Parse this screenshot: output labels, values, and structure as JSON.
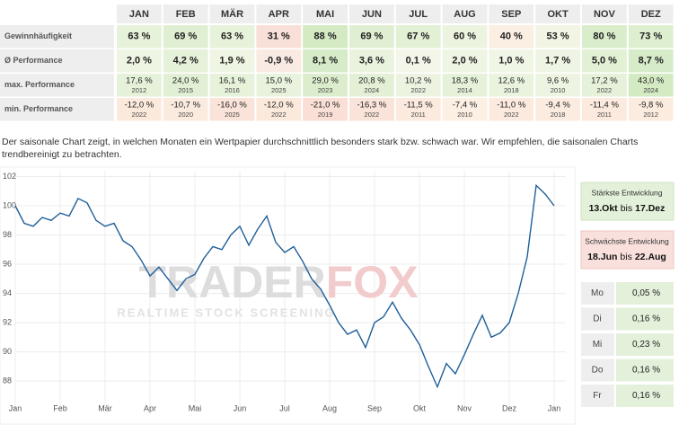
{
  "table": {
    "header": [
      "JAN",
      "FEB",
      "MÄR",
      "APR",
      "MAI",
      "JUN",
      "JUL",
      "AUG",
      "SEP",
      "OKT",
      "NOV",
      "DEZ"
    ],
    "rows": [
      {
        "label": "Gewinnhäufigkeit",
        "values": [
          "63 %",
          "69 %",
          "63 %",
          "31 %",
          "88 %",
          "69 %",
          "67 %",
          "60 %",
          "40 %",
          "53 %",
          "80 %",
          "73 %"
        ],
        "colors": [
          "#e6f2d9",
          "#e0efd2",
          "#e6f2d9",
          "#f8e0d8",
          "#d3eac3",
          "#e0efd2",
          "#e2f0d4",
          "#ecf4df",
          "#fbeee3",
          "#f3f5e4",
          "#d9edcb",
          "#deefd0"
        ]
      },
      {
        "label": "Ø Performance",
        "values": [
          "2,0 %",
          "4,2 %",
          "1,9 %",
          "-0,9 %",
          "8,1 %",
          "3,6 %",
          "0,1 %",
          "2,0 %",
          "1,0 %",
          "1,7 %",
          "5,0 %",
          "8,7 %"
        ],
        "colors": [
          "#eef5e3",
          "#e6f1da",
          "#eef5e3",
          "#f9ebe3",
          "#d6ebc7",
          "#e9f3dd",
          "#f3f6e8",
          "#eef5e3",
          "#f0f6e6",
          "#eff5e4",
          "#e2f0d4",
          "#d6ebc7"
        ]
      },
      {
        "label": "max. Performance",
        "values": [
          "17,6 %",
          "24,0 %",
          "16,1 %",
          "15,0 %",
          "29,0 %",
          "20,8 %",
          "10,2 %",
          "18,3 %",
          "12,6 %",
          "9,6 %",
          "17,2 %",
          "43,0 %"
        ],
        "years": [
          "2012",
          "2015",
          "2016",
          "2025",
          "2023",
          "2024",
          "2022",
          "2014",
          "2018",
          "2010",
          "2022",
          "2024"
        ],
        "colors": [
          "#e6f1da",
          "#e1efd4",
          "#e7f2db",
          "#e8f2dc",
          "#dcedcd",
          "#e3f0d6",
          "#ecf4e1",
          "#e5f1d9",
          "#e9f3de",
          "#edf5e2",
          "#e6f1da",
          "#d3eac3"
        ]
      },
      {
        "label": "min. Performance",
        "values": [
          "-12,0 %",
          "-10,7 %",
          "-16,0 %",
          "-12,0 %",
          "-21,0 %",
          "-16,3 %",
          "-11,5 %",
          "-7,4 %",
          "-11,0 %",
          "-9,4 %",
          "-11,4 %",
          "-9,8 %"
        ],
        "years": [
          "2022",
          "2020",
          "2025",
          "2022",
          "2019",
          "2022",
          "2011",
          "2010",
          "2022",
          "2018",
          "2011",
          "2012"
        ],
        "colors": [
          "#fbe9dc",
          "#fbebde",
          "#fae3d8",
          "#fbe9dc",
          "#f9dfd5",
          "#fae3d8",
          "#fbeadd",
          "#fcefe3",
          "#fbeadd",
          "#fcece0",
          "#fbeadd",
          "#fcece0"
        ]
      }
    ]
  },
  "description": [
    "Der saisonale Chart zeigt, in welchen Monaten ein Wertpapier durchschnittlich besonders stark bzw. schwach war. Wir empfehlen, die saisonalen Charts",
    "trendbereinigt zu betrachten."
  ],
  "chart_data": {
    "type": "line",
    "values": [
      100,
      98.8,
      98.6,
      99.2,
      99.0,
      99.5,
      99.3,
      100.5,
      100.2,
      99.0,
      98.6,
      98.8,
      97.6,
      97.2,
      96.3,
      95.2,
      95.8,
      95.0,
      94.2,
      95.0,
      95.3,
      96.4,
      97.2,
      97.0,
      98.0,
      98.6,
      97.3,
      98.4,
      99.3,
      97.5,
      96.8,
      97.2,
      96.2,
      95.0,
      94.3,
      93.2,
      92.0,
      91.2,
      91.5,
      90.3,
      92.0,
      92.4,
      93.4,
      92.3,
      91.5,
      90.5,
      89.0,
      87.6,
      89.2,
      88.5,
      89.8,
      91.2,
      92.5,
      91.0,
      91.3,
      92.0,
      94.0,
      96.5,
      101.4,
      100.8,
      100.0
    ],
    "xtick_labels": [
      "Jan",
      "Feb",
      "Mär",
      "Apr",
      "Mai",
      "Jun",
      "Jul",
      "Aug",
      "Sep",
      "Okt",
      "Nov",
      "Dez",
      "Jan"
    ],
    "ylim": [
      86.1,
      102.4
    ],
    "yticks": [
      88,
      90,
      92,
      94,
      96,
      98,
      100,
      102
    ],
    "color": "#1f5f99",
    "grid": true
  },
  "watermark": {
    "brand_left": "TRADER",
    "brand_right": "FOX",
    "tagline": "REALTIME STOCK SCREENING"
  },
  "strongest": {
    "title": "Stärkste Entwicklung",
    "from": "13.Okt",
    "connector": "bis",
    "to": "17.Dez"
  },
  "weakest": {
    "title": "Schwächste Entwicklung",
    "from": "18.Jun",
    "connector": "bis",
    "to": "22.Aug"
  },
  "weekdays": [
    {
      "day": "Mo",
      "value": "0,05 %"
    },
    {
      "day": "Di",
      "value": "0,16 %"
    },
    {
      "day": "Mi",
      "value": "0,23 %"
    },
    {
      "day": "Do",
      "value": "0,16 %"
    },
    {
      "day": "Fr",
      "value": "0,16 %"
    }
  ]
}
